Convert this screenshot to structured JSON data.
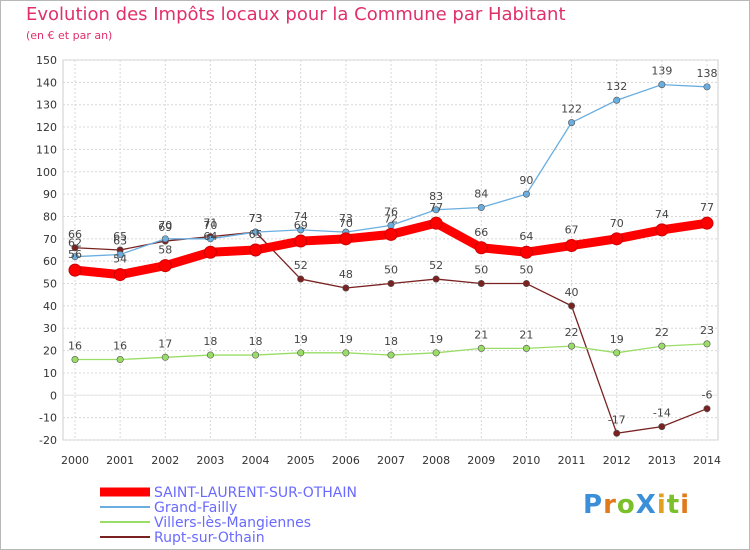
{
  "chart_data": {
    "type": "line",
    "title": "Evolution des Impôts locaux pour la Commune par Habitant",
    "subtitle": "(en € et par an)",
    "xlabel": "",
    "ylabel": "",
    "ylim": [
      -20,
      150
    ],
    "yticks": [
      -20,
      -10,
      0,
      10,
      20,
      30,
      40,
      50,
      60,
      70,
      80,
      90,
      100,
      110,
      120,
      130,
      140,
      150
    ],
    "grid": true,
    "legend_position": "bottom-left",
    "categories": [
      "2000",
      "2001",
      "2002",
      "2003",
      "2004",
      "2005",
      "2006",
      "2007",
      "2008",
      "2009",
      "2010",
      "2011",
      "2012",
      "2013",
      "2014"
    ],
    "series": [
      {
        "name": "SAINT-LAURENT-SUR-OTHAIN",
        "color": "#ff0000",
        "values": [
          56,
          54,
          58,
          64,
          65,
          69,
          70,
          72,
          77,
          66,
          64,
          67,
          70,
          74,
          77
        ]
      },
      {
        "name": "Grand-Failly",
        "color": "#6aaee0",
        "values": [
          62,
          63,
          70,
          70,
          73,
          74,
          73,
          76,
          83,
          84,
          90,
          122,
          132,
          139,
          138
        ]
      },
      {
        "name": "Villers-lès-Mangiennes",
        "color": "#99dd66",
        "values": [
          16,
          16,
          17,
          18,
          18,
          19,
          19,
          18,
          19,
          21,
          21,
          22,
          19,
          22,
          23
        ]
      },
      {
        "name": "Rupt-sur-Othain",
        "color": "#7a2222",
        "values": [
          66,
          65,
          69,
          71,
          73,
          52,
          48,
          50,
          52,
          50,
          50,
          40,
          -17,
          -14,
          -6
        ]
      }
    ]
  },
  "logo": {
    "text": "ProXiti"
  }
}
